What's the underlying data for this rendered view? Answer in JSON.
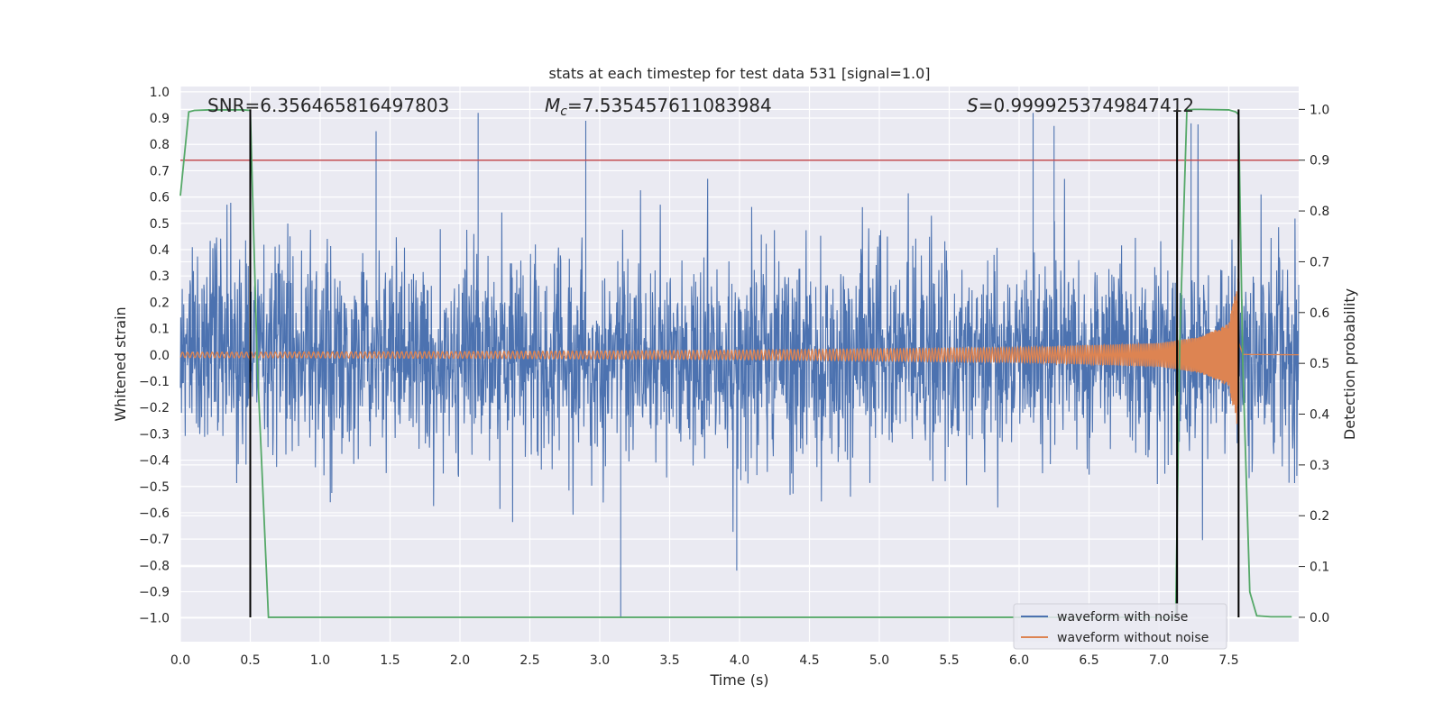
{
  "chart_data": {
    "type": "line",
    "title": "stats at each timestep for test data 531 [signal=1.0]",
    "xlabel": "Time (s)",
    "ylabel": "Whitened strain",
    "y2label": "Detection probability",
    "xlim": [
      0.0,
      8.0
    ],
    "ylim": [
      -1.09,
      1.02
    ],
    "y2lim": [
      -0.048,
      1.045
    ],
    "x_ticks": [
      0.0,
      0.5,
      1.0,
      1.5,
      2.0,
      2.5,
      3.0,
      3.5,
      4.0,
      4.5,
      5.0,
      5.5,
      6.0,
      6.5,
      7.0,
      7.5
    ],
    "x_tick_labels": [
      "0.0",
      "0.5",
      "1.0",
      "1.5",
      "2.0",
      "2.5",
      "3.0",
      "3.5",
      "4.0",
      "4.5",
      "5.0",
      "5.5",
      "6.0",
      "6.5",
      "7.0",
      "7.5"
    ],
    "y_ticks": [
      1.0,
      0.9,
      0.8,
      0.7,
      0.6,
      0.5,
      0.4,
      0.3,
      0.2,
      0.1,
      0.0,
      -0.1,
      -0.2,
      -0.3,
      -0.4,
      -0.5,
      -0.6,
      -0.7,
      -0.8,
      -0.9,
      -1.0
    ],
    "y_tick_labels": [
      "1.0",
      "0.9",
      "0.8",
      "0.7",
      "0.6",
      "0.5",
      "0.4",
      "0.3",
      "0.2",
      "0.1",
      "0.0",
      "−0.1",
      "−0.2",
      "−0.3",
      "−0.4",
      "−0.5",
      "−0.6",
      "−0.7",
      "−0.8",
      "−0.9",
      "−1.0"
    ],
    "y2_ticks": [
      1.0,
      0.9,
      0.8,
      0.7,
      0.6,
      0.5,
      0.4,
      0.3,
      0.2,
      0.1,
      0.0
    ],
    "y2_tick_labels": [
      "1.0",
      "0.9",
      "0.8",
      "0.7",
      "0.6",
      "0.5",
      "0.4",
      "0.3",
      "0.2",
      "0.1",
      "0.0"
    ],
    "annotations": {
      "snr": "SNR=6.356465816497803",
      "mc_symbol": "M",
      "mc_sub": "c",
      "mc_value": "=7.535457611083984",
      "s_symbol": "S",
      "s_value": "=0.9999253749847412"
    },
    "threshold": {
      "y2": 0.9,
      "color": "#c44e52"
    },
    "event_lines": [
      0.5,
      7.13,
      7.57
    ],
    "series": [
      {
        "name": "waveform with noise",
        "color": "#4c72b0",
        "description": "dense noisy whitened strain, amplitude mostly within ±0.5",
        "approx_envelope": [
          -0.5,
          0.5
        ],
        "notable_peaks": [
          {
            "x": 1.4,
            "y": 0.85
          },
          {
            "x": 2.13,
            "y": 0.92
          },
          {
            "x": 2.9,
            "y": 0.89
          },
          {
            "x": 3.15,
            "y": -1.0
          },
          {
            "x": 3.98,
            "y": -0.82
          },
          {
            "x": 6.1,
            "y": 0.92
          },
          {
            "x": 6.25,
            "y": 0.87
          },
          {
            "x": 7.23,
            "y": 0.88
          }
        ]
      },
      {
        "name": "waveform without noise",
        "color": "#dd8452",
        "description": "chirp signal, amplitude growing from ~0.01 to ~0.3 near merger at 7.57 s",
        "envelope": [
          [
            0.0,
            0.01
          ],
          [
            2.0,
            0.013
          ],
          [
            4.0,
            0.018
          ],
          [
            6.0,
            0.028
          ],
          [
            7.0,
            0.045
          ],
          [
            7.3,
            0.07
          ],
          [
            7.5,
            0.12
          ],
          [
            7.57,
            0.3
          ],
          [
            7.6,
            0.01
          ],
          [
            8.0,
            0.003
          ]
        ]
      },
      {
        "name": "detection probability",
        "color": "#55a868",
        "axis": "y2",
        "x": [
          0.0,
          0.06,
          0.1,
          0.2,
          0.3,
          0.4,
          0.45,
          0.5,
          0.55,
          0.63,
          1.0,
          2.0,
          3.0,
          4.0,
          5.0,
          6.0,
          7.0,
          7.12,
          7.15,
          7.2,
          7.25,
          7.3,
          7.5,
          7.55,
          7.57,
          7.6,
          7.65,
          7.7,
          7.8,
          7.95
        ],
        "y": [
          0.83,
          0.995,
          0.998,
          0.999,
          0.999,
          0.999,
          0.999,
          0.998,
          0.5,
          0.0,
          0.0,
          0.0,
          0.0,
          0.0,
          0.0,
          0.0,
          0.0,
          0.0,
          0.55,
          0.999,
          1.0,
          1.0,
          0.999,
          0.995,
          0.99,
          0.5,
          0.05,
          0.003,
          0.001,
          0.001
        ]
      }
    ]
  },
  "legend": {
    "items": [
      {
        "label": "waveform with noise",
        "color": "#4c72b0"
      },
      {
        "label": "waveform without noise",
        "color": "#dd8452"
      }
    ]
  },
  "style": {
    "plot_bg": "#eaeaf2",
    "grid": "#ffffff",
    "event_line": "#000000"
  }
}
